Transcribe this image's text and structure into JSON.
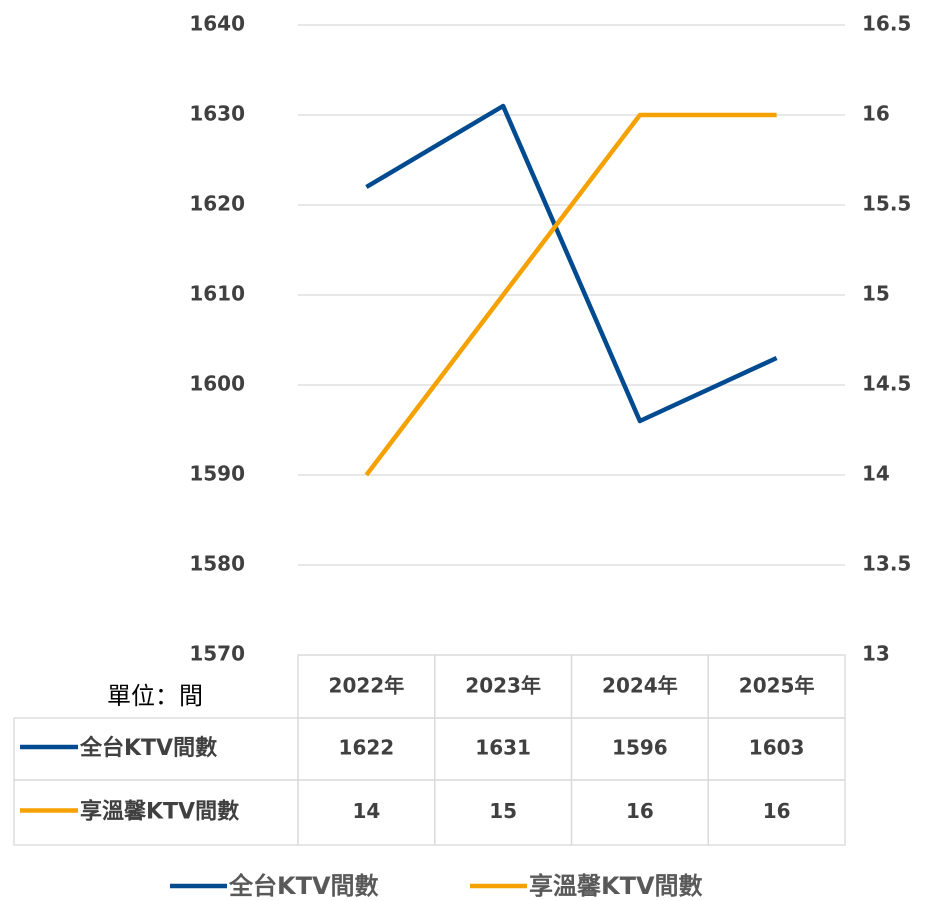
{
  "chart_data": {
    "type": "line",
    "categories": [
      "2022年",
      "2023年",
      "2024年",
      "2025年"
    ],
    "series": [
      {
        "name": "全台KTV間數",
        "color": "#004a8f",
        "values": [
          1622,
          1631,
          1596,
          1603
        ]
      },
      {
        "name": "享溫馨KTV間數",
        "color": "#f5a100",
        "values": [
          14,
          15,
          16,
          16
        ],
        "axis": "y2"
      }
    ],
    "ylim": [
      1570,
      1640
    ],
    "yticks": [
      1570,
      1580,
      1590,
      1600,
      1610,
      1620,
      1630,
      1640
    ],
    "y2lim": [
      13,
      16.5
    ],
    "y2ticks": [
      13,
      13.5,
      14,
      14.5,
      15,
      15.5,
      16,
      16.5
    ],
    "unit_label": "單位：間",
    "grid": true
  }
}
